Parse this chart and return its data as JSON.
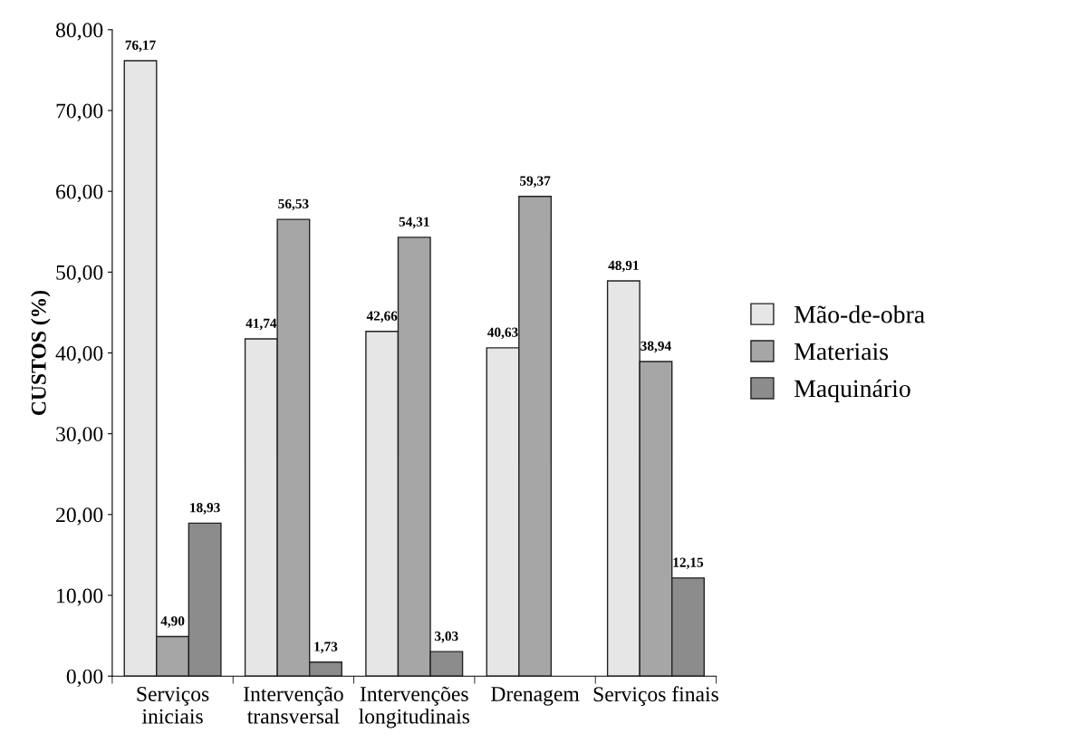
{
  "chart_data": {
    "type": "bar",
    "ylabel": "CUSTOS (%)",
    "categories": [
      "Serviços\niniciais",
      "Intervenção\ntransversal",
      "Intervenções\nlongitudinais",
      "Drenagem",
      "Serviços finais"
    ],
    "series": [
      {
        "name": "Mão-de-obra",
        "color": "#e6e6e6",
        "values": [
          76.17,
          41.74,
          42.66,
          40.63,
          48.91
        ],
        "value_labels": [
          "76,17",
          "41,74",
          "42,66",
          "40,63",
          "48,91"
        ]
      },
      {
        "name": "Materiais",
        "color": "#a6a6a6",
        "values": [
          4.9,
          56.53,
          54.31,
          59.37,
          38.94
        ],
        "value_labels": [
          "4,90",
          "56,53",
          "54,31",
          "59,37",
          "38,94"
        ]
      },
      {
        "name": "Maquinário",
        "color": "#8c8c8c",
        "values": [
          18.93,
          1.73,
          3.03,
          null,
          12.15
        ],
        "value_labels": [
          "18,93",
          "1,73",
          "3,03",
          null,
          "12,15"
        ]
      }
    ],
    "ylim": [
      0,
      80
    ],
    "yticks": [
      {
        "value": 0,
        "label": "0,00"
      },
      {
        "value": 10,
        "label": "10,00"
      },
      {
        "value": 20,
        "label": "20,00"
      },
      {
        "value": 30,
        "label": "30,00"
      },
      {
        "value": 40,
        "label": "40,00"
      },
      {
        "value": 50,
        "label": "50,00"
      },
      {
        "value": 60,
        "label": "60,00"
      },
      {
        "value": 70,
        "label": "70,00"
      },
      {
        "value": 80,
        "label": "80,00"
      }
    ],
    "grid": false,
    "legend": "right"
  }
}
